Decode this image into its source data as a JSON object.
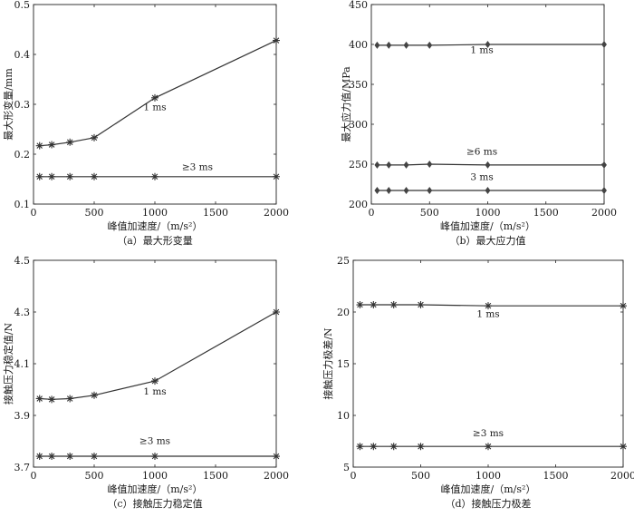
{
  "chart_data": [
    {
      "type": "line",
      "caption": "（a）最大形变量",
      "xlabel": "峰值加速度/（m/s²）",
      "ylabel": "最大形变量/mm",
      "xlim": [
        0,
        2000
      ],
      "ylim": [
        0.1,
        0.5
      ],
      "xticks": [
        0,
        500,
        1000,
        1500,
        2000
      ],
      "yticks": [
        0.1,
        0.2,
        0.3,
        0.4,
        0.5
      ],
      "ytick_labels": [
        "0.1",
        "0.2",
        "0.3",
        "0.4",
        "0.5"
      ],
      "marker": "asterisk",
      "grid": false,
      "series": [
        {
          "name": "1 ms",
          "x": [
            50,
            150,
            300,
            500,
            1000,
            2000
          ],
          "values": [
            0.217,
            0.219,
            0.224,
            0.233,
            0.313,
            0.428
          ]
        },
        {
          "name": "≥3 ms",
          "x": [
            50,
            150,
            300,
            500,
            1000,
            2000
          ],
          "values": [
            0.155,
            0.155,
            0.155,
            0.155,
            0.155,
            0.155
          ]
        }
      ],
      "annotations": [
        {
          "text": "1 ms",
          "x": 1000,
          "y": 0.288
        },
        {
          "text": "≥3 ms",
          "x": 1350,
          "y": 0.168
        }
      ]
    },
    {
      "type": "line",
      "caption": "（b）最大应力值",
      "xlabel": "峰值加速度/（m/s²）",
      "ylabel": "最大应力值/MPa",
      "xlim": [
        0,
        2000
      ],
      "ylim": [
        200,
        450
      ],
      "xticks": [
        0,
        500,
        1000,
        1500,
        2000
      ],
      "yticks": [
        200,
        250,
        300,
        350,
        400,
        450
      ],
      "ytick_labels": [
        "200",
        "250",
        "300",
        "350",
        "400",
        "450"
      ],
      "marker": "diamond",
      "grid": false,
      "series": [
        {
          "name": "1 ms",
          "x": [
            50,
            150,
            300,
            500,
            1000,
            2000
          ],
          "values": [
            399,
            399,
            399,
            399,
            400,
            400
          ]
        },
        {
          "name": "≥6 ms",
          "x": [
            50,
            150,
            300,
            500,
            1000,
            2000
          ],
          "values": [
            249,
            249,
            249,
            250,
            249,
            249
          ]
        },
        {
          "name": "3 ms",
          "x": [
            50,
            150,
            300,
            500,
            1000,
            2000
          ],
          "values": [
            217,
            217,
            217,
            217,
            217,
            217
          ]
        }
      ],
      "annotations": [
        {
          "text": "1 ms",
          "x": 950,
          "y": 389
        },
        {
          "text": "≥6 ms",
          "x": 950,
          "y": 262
        },
        {
          "text": "3 ms",
          "x": 950,
          "y": 230
        }
      ]
    },
    {
      "type": "line",
      "caption": "（c）接触压力稳定值",
      "xlabel": "峰值加速度/（m/s²）",
      "ylabel": "接触压力稳定值/N",
      "xlim": [
        0,
        2000
      ],
      "ylim": [
        3.7,
        4.5
      ],
      "xticks": [
        0,
        500,
        1000,
        1500,
        2000
      ],
      "yticks": [
        3.7,
        3.9,
        4.1,
        4.3,
        4.5
      ],
      "ytick_labels": [
        "3.7",
        "3.9",
        "4.1",
        "4.3",
        "4.5"
      ],
      "marker": "asterisk",
      "grid": false,
      "series": [
        {
          "name": "1 ms",
          "x": [
            50,
            150,
            300,
            500,
            1000,
            2000
          ],
          "values": [
            3.965,
            3.962,
            3.965,
            3.978,
            4.033,
            4.3
          ]
        },
        {
          "name": "≥3 ms",
          "x": [
            50,
            150,
            300,
            500,
            1000,
            2000
          ],
          "values": [
            3.742,
            3.742,
            3.742,
            3.742,
            3.742,
            3.742
          ]
        }
      ],
      "annotations": [
        {
          "text": "1 ms",
          "x": 1000,
          "y": 3.98
        },
        {
          "text": "≥3 ms",
          "x": 1000,
          "y": 3.79
        }
      ]
    },
    {
      "type": "line",
      "caption": "（d）接触压力极差",
      "xlabel": "峰值加速度/（m/s²）",
      "ylabel": "接触压力极差/N",
      "xlim": [
        0,
        2000
      ],
      "ylim": [
        5,
        25
      ],
      "xticks": [
        0,
        500,
        1000,
        1500,
        2000
      ],
      "yticks": [
        5,
        10,
        15,
        20,
        25
      ],
      "ytick_labels": [
        "5",
        "10",
        "15",
        "20",
        "25"
      ],
      "marker": "asterisk",
      "grid": false,
      "series": [
        {
          "name": "1 ms",
          "x": [
            50,
            150,
            300,
            500,
            1000,
            2000
          ],
          "values": [
            20.7,
            20.7,
            20.7,
            20.7,
            20.6,
            20.6
          ]
        },
        {
          "name": "≥3 ms",
          "x": [
            50,
            150,
            300,
            500,
            1000,
            2000
          ],
          "values": [
            7.0,
            7.0,
            7.0,
            7.0,
            7.0,
            7.0
          ]
        }
      ],
      "annotations": [
        {
          "text": "1 ms",
          "x": 1000,
          "y": 19.5
        },
        {
          "text": "≥3 ms",
          "x": 1000,
          "y": 8.0
        }
      ]
    }
  ]
}
